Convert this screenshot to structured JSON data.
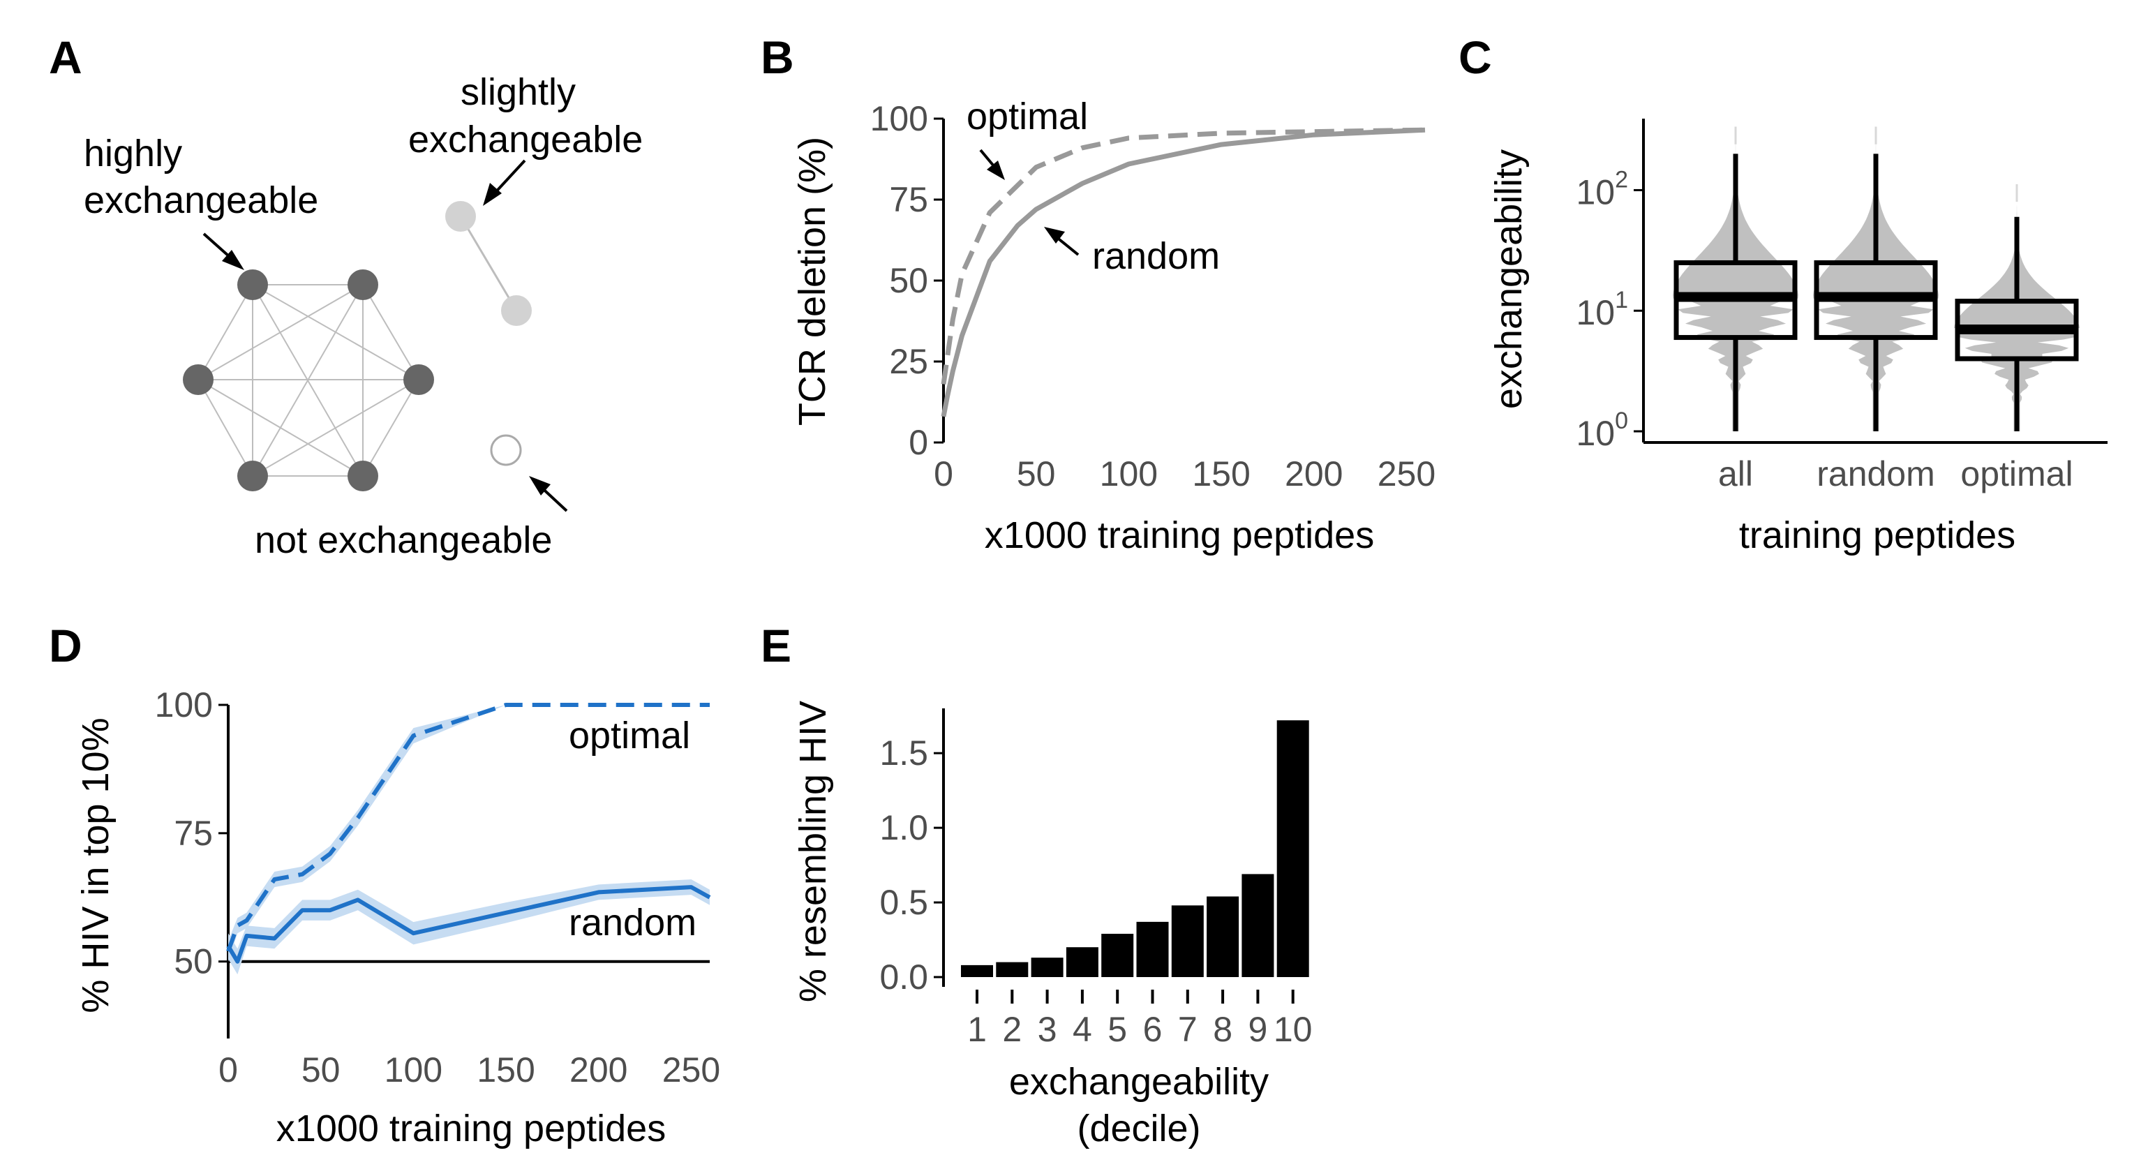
{
  "panels": {
    "A": {
      "letter": "A",
      "labels": {
        "highly_1": "highly",
        "highly_2": "exchangeable",
        "slightly_1": "slightly",
        "slightly_2": "exchangeable",
        "not": "not exchangeable"
      },
      "colors": {
        "highly": "#666666",
        "slightly": "#d2d2d2",
        "not": "#ffffff",
        "edge": "#bdbdbd"
      }
    },
    "B": {
      "letter": "B"
    },
    "C": {
      "letter": "C"
    },
    "D": {
      "letter": "D"
    },
    "E": {
      "letter": "E"
    }
  },
  "chart_data": [
    {
      "panel": "B",
      "type": "line",
      "xlabel": "x1000 training peptides",
      "ylabel": "TCR deletion (%)",
      "xlim": [
        0,
        260
      ],
      "ylim": [
        0,
        100
      ],
      "xticks": [
        0,
        50,
        100,
        150,
        200,
        250
      ],
      "yticks": [
        0,
        25,
        50,
        75,
        100
      ],
      "color": "#999999",
      "series": [
        {
          "name": "optimal",
          "style": "dashed",
          "x": [
            0,
            2,
            5,
            10,
            25,
            50,
            75,
            100,
            150,
            200,
            260
          ],
          "y": [
            18,
            26,
            38,
            52,
            71,
            85,
            91,
            94,
            95.5,
            96,
            96.5
          ]
        },
        {
          "name": "random",
          "style": "solid",
          "x": [
            0,
            2,
            5,
            10,
            25,
            40,
            50,
            75,
            100,
            150,
            200,
            260
          ],
          "y": [
            8,
            14,
            22,
            33,
            56,
            67,
            72,
            80,
            86,
            92,
            95,
            96.5
          ]
        }
      ]
    },
    {
      "panel": "C",
      "type": "box",
      "xlabel": "training peptides",
      "ylabel": "exchangeability",
      "yscale": "log",
      "ylim": [
        1,
        400
      ],
      "yticks": [
        {
          "base": "10",
          "exp": "0",
          "value": 1
        },
        {
          "base": "10",
          "exp": "1",
          "value": 10
        },
        {
          "base": "10",
          "exp": "2",
          "value": 100
        }
      ],
      "violin_color": "#c0c0c0",
      "categories": [
        "all",
        "random",
        "optimal"
      ],
      "boxes": [
        {
          "name": "all",
          "whisker_low": 1,
          "q1": 6,
          "median": 13,
          "q3": 25,
          "whisker_high": 200,
          "violin_max": 240
        },
        {
          "name": "random",
          "whisker_low": 1,
          "q1": 6,
          "median": 13,
          "q3": 25,
          "whisker_high": 200,
          "violin_max": 240
        },
        {
          "name": "optimal",
          "whisker_low": 1,
          "q1": 4,
          "median": 7,
          "q3": 12,
          "whisker_high": 60,
          "violin_max": 80
        }
      ]
    },
    {
      "panel": "D",
      "type": "line",
      "xlabel": "x1000 training peptides",
      "ylabel": "% HIV in top 10%",
      "xlim": [
        0,
        260
      ],
      "ylim": [
        35,
        100
      ],
      "xticks": [
        0,
        50,
        100,
        150,
        200,
        250
      ],
      "yticks": [
        50,
        75,
        100
      ],
      "baseline": 50,
      "color": "#1f72c8",
      "band_color": "#c6dcf2",
      "series": [
        {
          "name": "optimal",
          "style": "dashed",
          "x": [
            0,
            5,
            10,
            25,
            40,
            55,
            70,
            100,
            150,
            200,
            260
          ],
          "y": [
            52,
            57,
            58,
            66,
            67,
            71,
            78,
            94,
            100,
            100,
            100
          ],
          "band": [
            2,
            1.5,
            1.5,
            1.5,
            1.5,
            1.5,
            1.5,
            1.5,
            0,
            0,
            0
          ]
        },
        {
          "name": "random",
          "style": "solid",
          "x": [
            0,
            5,
            10,
            25,
            40,
            55,
            70,
            100,
            150,
            200,
            250,
            260
          ],
          "y": [
            53,
            50,
            55,
            54.5,
            60,
            60,
            62,
            55.5,
            59.5,
            63.5,
            64.5,
            62.5
          ],
          "band": [
            2.5,
            2.5,
            2,
            2,
            2,
            2,
            2,
            2.2,
            2,
            1.5,
            1.5,
            1.5
          ]
        }
      ]
    },
    {
      "panel": "E",
      "type": "bar",
      "xlabel_line1": "exchangeability",
      "xlabel_line2": "(decile)",
      "ylabel": "% resembling HIV",
      "ylim": [
        0,
        1.8
      ],
      "yticks": [
        "0.0",
        "0.5",
        "1.0",
        "1.5"
      ],
      "ytick_values": [
        0,
        0.5,
        1.0,
        1.5
      ],
      "color": "#000000",
      "categories": [
        "1",
        "2",
        "3",
        "4",
        "5",
        "6",
        "7",
        "8",
        "9",
        "10"
      ],
      "values": [
        0.08,
        0.1,
        0.13,
        0.2,
        0.29,
        0.37,
        0.48,
        0.54,
        0.69,
        1.72
      ]
    }
  ]
}
